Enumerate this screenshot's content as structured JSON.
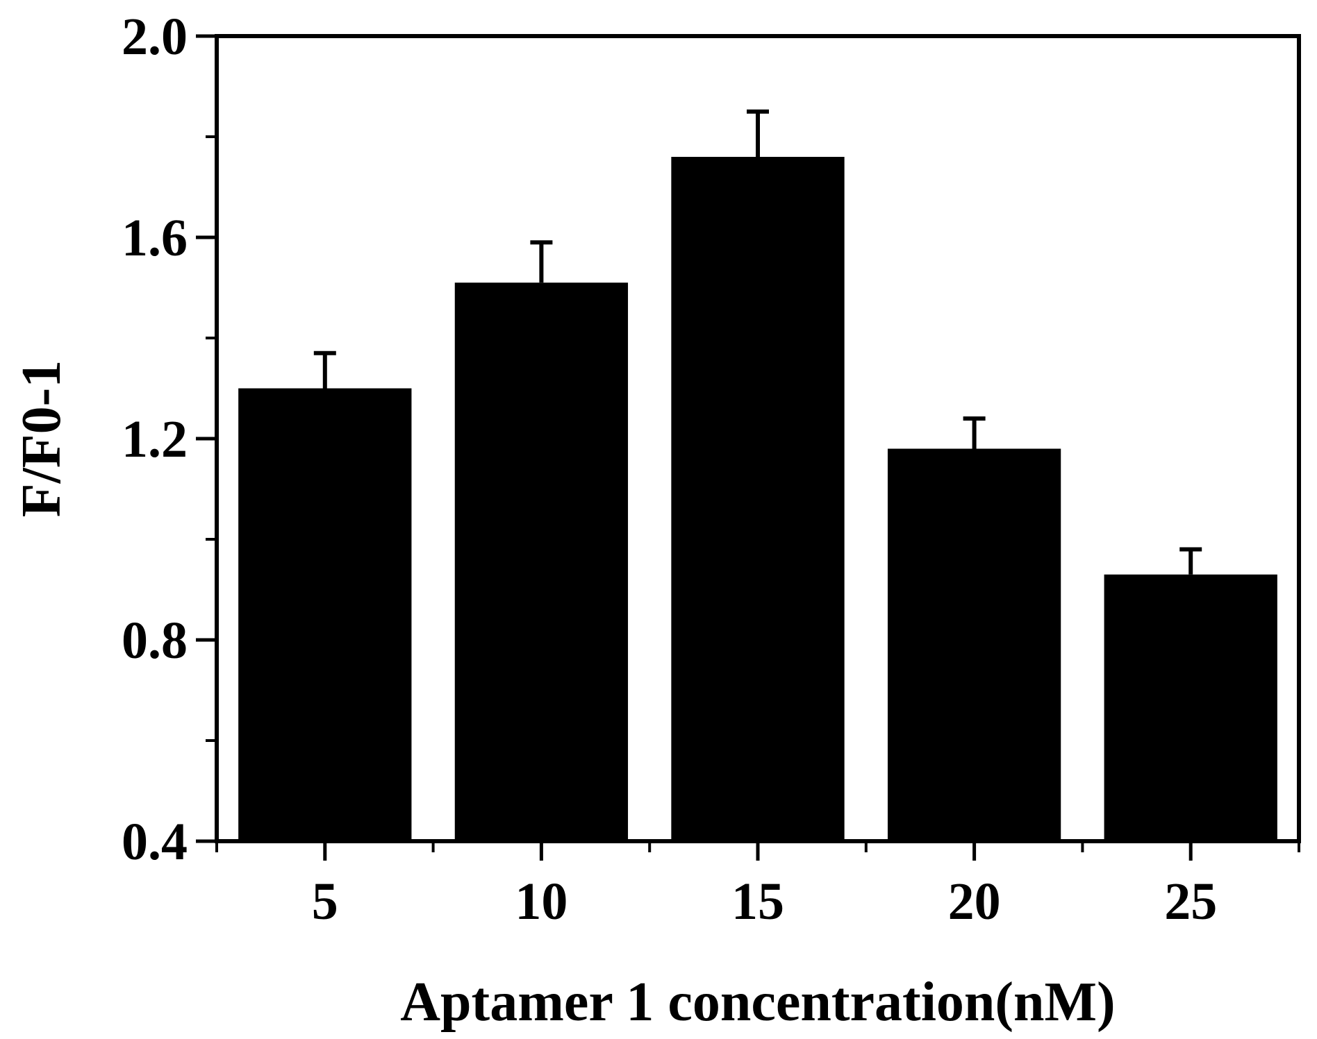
{
  "chart_data": {
    "type": "bar",
    "title": "",
    "xlabel": "Aptamer 1 concentration(nM)",
    "ylabel": "F/F0-1",
    "categories": [
      "5",
      "10",
      "15",
      "20",
      "25"
    ],
    "values": [
      1.3,
      1.51,
      1.76,
      1.18,
      0.93
    ],
    "error_plus": [
      0.07,
      0.08,
      0.09,
      0.06,
      0.05
    ],
    "ylim": [
      0.4,
      2.0
    ],
    "yticks": [
      "0.4",
      "0.8",
      "1.2",
      "1.6",
      "2.0"
    ],
    "ytick_values": [
      0.4,
      0.8,
      1.2,
      1.6,
      2.0
    ],
    "bar_color": "#000000",
    "grid": false,
    "legend": "none"
  }
}
